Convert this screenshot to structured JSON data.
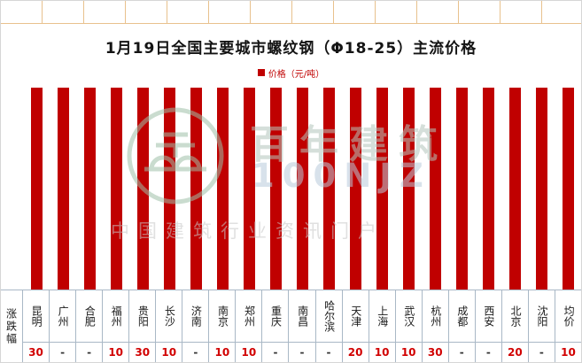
{
  "title": "1月19日全国主要城市螺纹钢（Φ18-25）主流价格",
  "legend": {
    "label": "价格（元/吨）",
    "color": "#C00000"
  },
  "table": {
    "row_header": "涨跌幅",
    "cities": [
      "昆明",
      "广州",
      "合肥",
      "福州",
      "贵阳",
      "长沙",
      "济南",
      "南京",
      "郑州",
      "重庆",
      "南昌",
      "哈尔滨",
      "天津",
      "上海",
      "武汉",
      "杭州",
      "成都",
      "西安",
      "北京",
      "沈阳",
      "均价"
    ],
    "changes": [
      "30",
      "-",
      "-",
      "10",
      "30",
      "10",
      "-",
      "10",
      "10",
      "-",
      "-",
      "-",
      "20",
      "10",
      "10",
      "30",
      "-",
      "-",
      "20",
      "-",
      "10"
    ]
  },
  "watermark": {
    "brand": "百年建筑",
    "logo_text": "100NJZ",
    "tagline": "中国建筑行业资讯门户"
  },
  "chart_data": {
    "type": "bar",
    "title": "1月19日全国主要城市螺纹钢（Φ18-25）主流价格",
    "categories": [
      "昆明",
      "广州",
      "合肥",
      "福州",
      "贵阳",
      "长沙",
      "济南",
      "南京",
      "郑州",
      "重庆",
      "南昌",
      "哈尔滨",
      "天津",
      "上海",
      "武汉",
      "杭州",
      "成都",
      "西安",
      "北京",
      "沈阳",
      "均价"
    ],
    "series": [
      {
        "name": "价格（元/吨）",
        "values": [
          100,
          100,
          100,
          100,
          100,
          100,
          100,
          100,
          100,
          100,
          100,
          100,
          100,
          100,
          100,
          100,
          100,
          100,
          100,
          100,
          100
        ]
      }
    ],
    "change_row": {
      "label": "涨跌幅",
      "values": [
        "30",
        "-",
        "-",
        "10",
        "30",
        "10",
        "-",
        "10",
        "10",
        "-",
        "-",
        "-",
        "20",
        "10",
        "10",
        "30",
        "-",
        "-",
        "20",
        "-",
        "10"
      ]
    },
    "bar_color": "#C00000",
    "ylim": [
      0,
      105
    ],
    "y_axis_visible": false,
    "value_labels_visible": false,
    "grid": false,
    "legend_position": "top-center"
  }
}
